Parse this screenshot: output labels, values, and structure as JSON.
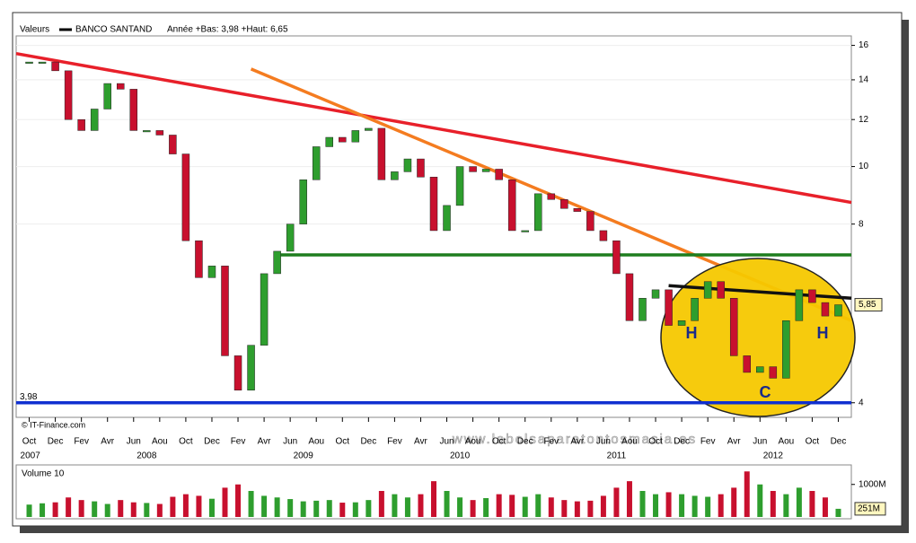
{
  "chart_data": {
    "type": "candlestick",
    "title": "Valeurs",
    "subtitle": "Année +Bas: 3,98 +Haut: 6,65",
    "credit": "© IT-Finance.com",
    "watermark": "www.labolsaparatontosmasia.es",
    "log_scale": true,
    "x": [
      "2007-10",
      "2007-11",
      "2007-12",
      "2008-01",
      "2008-02",
      "2008-03",
      "2008-04",
      "2008-05",
      "2008-06",
      "2008-07",
      "2008-08",
      "2008-09",
      "2008-10",
      "2008-11",
      "2008-12",
      "2009-01",
      "2009-02",
      "2009-03",
      "2009-04",
      "2009-05",
      "2009-06",
      "2009-07",
      "2009-08",
      "2009-09",
      "2009-10",
      "2009-11",
      "2009-12",
      "2010-01",
      "2010-02",
      "2010-03",
      "2010-04",
      "2010-05",
      "2010-06",
      "2010-07",
      "2010-08",
      "2010-09",
      "2010-10",
      "2010-11",
      "2010-12",
      "2011-01",
      "2011-02",
      "2011-03",
      "2011-04",
      "2011-05",
      "2011-06",
      "2011-07",
      "2011-08",
      "2011-09",
      "2011-10",
      "2011-11",
      "2011-12",
      "2012-01",
      "2012-02",
      "2012-03",
      "2012-04",
      "2012-05",
      "2012-06",
      "2012-07",
      "2012-08",
      "2012-09",
      "2012-10",
      "2012-11",
      "2012-12"
    ],
    "series": [
      {
        "name": "BANCO SANTAND",
        "color": "#000000",
        "up_color": "#2e9e2e",
        "down_color": "#c8102e",
        "values": [
          15,
          15,
          14.5,
          12,
          11.5,
          12.5,
          13.8,
          13.5,
          11.5,
          11.5,
          11.3,
          10.5,
          7.5,
          6.5,
          6.8,
          4.8,
          4.2,
          5,
          6.6,
          7.2,
          8,
          9.5,
          10.8,
          11.2,
          11,
          11.5,
          11.6,
          9.5,
          9.8,
          10.3,
          9.6,
          7.8,
          8.6,
          10,
          9.8,
          9.9,
          9.5,
          7.8,
          7.8,
          9,
          8.8,
          8.5,
          8.4,
          7.8,
          7.5,
          6.6,
          5.5,
          6,
          6.2,
          5.4,
          5.5,
          6,
          6.4,
          6,
          4.8,
          4.5,
          4.6,
          4.4,
          5.5,
          6.2,
          5.9,
          5.6,
          5.85
        ]
      }
    ],
    "xlim": [
      "2007-09",
      "2013-01"
    ],
    "ylim": [
      3.78,
      16.6
    ],
    "yticks": [
      4,
      8,
      10,
      12,
      14,
      16
    ],
    "xticks": [
      {
        "value": "2007-10",
        "label": "Oct"
      },
      {
        "value": "2007-12",
        "label": "Dec"
      },
      {
        "value": "2008-02",
        "label": "Fev"
      },
      {
        "value": "2008-04",
        "label": "Avr"
      },
      {
        "value": "2008-06",
        "label": "Jun"
      },
      {
        "value": "2008-08",
        "label": "Aou"
      },
      {
        "value": "2008-10",
        "label": "Oct"
      },
      {
        "value": "2008-12",
        "label": "Dec"
      },
      {
        "value": "2009-02",
        "label": "Fev"
      },
      {
        "value": "2009-04",
        "label": "Avr"
      },
      {
        "value": "2009-06",
        "label": "Jun"
      },
      {
        "value": "2009-08",
        "label": "Aou"
      },
      {
        "value": "2009-10",
        "label": "Oct"
      },
      {
        "value": "2009-12",
        "label": "Dec"
      },
      {
        "value": "2010-02",
        "label": "Fev"
      },
      {
        "value": "2010-04",
        "label": "Avr"
      },
      {
        "value": "2010-06",
        "label": "Jun"
      },
      {
        "value": "2010-08",
        "label": "Aou"
      },
      {
        "value": "2010-10",
        "label": "Oct"
      },
      {
        "value": "2010-12",
        "label": "Dec"
      },
      {
        "value": "2011-02",
        "label": "Fev"
      },
      {
        "value": "2011-04",
        "label": "Avr"
      },
      {
        "value": "2011-06",
        "label": "Jun"
      },
      {
        "value": "2011-08",
        "label": "Aou"
      },
      {
        "value": "2011-10",
        "label": "Oct"
      },
      {
        "value": "2011-12",
        "label": "Dec"
      },
      {
        "value": "2012-02",
        "label": "Fev"
      },
      {
        "value": "2012-04",
        "label": "Avr"
      },
      {
        "value": "2012-06",
        "label": "Jun"
      },
      {
        "value": "2012-08",
        "label": "Aou"
      },
      {
        "value": "2012-10",
        "label": "Oct"
      },
      {
        "value": "2012-12",
        "label": "Dec"
      }
    ],
    "year_ticks": [
      {
        "value": "2007-10",
        "label": "2007"
      },
      {
        "value": "2008-07",
        "label": "2008"
      },
      {
        "value": "2009-07",
        "label": "2009"
      },
      {
        "value": "2010-07",
        "label": "2010"
      },
      {
        "value": "2011-07",
        "label": "2011"
      },
      {
        "value": "2012-07",
        "label": "2012"
      }
    ],
    "low": {
      "value": 3.98,
      "label": "3,98"
    },
    "last": {
      "value": 5.85,
      "label": "5,85"
    },
    "trendlines": [
      {
        "color": "#e8202a",
        "x": [
          "2007-09",
          "2013-01"
        ],
        "y": [
          15.5,
          8.7
        ]
      },
      {
        "color": "#f47c20",
        "x": [
          "2009-03",
          "2013-01"
        ],
        "y": [
          14.6,
          5.5
        ]
      },
      {
        "color": "#1e7d1e",
        "x": [
          "2009-05",
          "2013-01"
        ],
        "y": [
          7.1,
          7.1
        ]
      },
      {
        "color": "#1030d0",
        "x": [
          "2007-09",
          "2013-01"
        ],
        "y": [
          4.0,
          4.0
        ]
      },
      {
        "color": "#111111",
        "x": [
          "2011-11",
          "2013-01"
        ],
        "y": [
          6.3,
          6.0
        ]
      }
    ],
    "annotations": [
      "H",
      "C",
      "H"
    ],
    "volume": {
      "title": "Volume 10",
      "values": [
        380,
        420,
        450,
        600,
        520,
        480,
        400,
        520,
        450,
        430,
        400,
        620,
        700,
        650,
        560,
        900,
        1000,
        800,
        650,
        600,
        550,
        480,
        500,
        520,
        440,
        450,
        520,
        800,
        700,
        600,
        700,
        1100,
        800,
        600,
        520,
        580,
        700,
        680,
        620,
        700,
        600,
        520,
        480,
        500,
        650,
        900,
        1100,
        800,
        700,
        760,
        700,
        650,
        620,
        700,
        900,
        1400,
        1000,
        800,
        700,
        900,
        800,
        600,
        251
      ],
      "ylim": [
        0,
        1600
      ],
      "yticks": [
        {
          "value": 1000,
          "label": "1000M"
        }
      ],
      "last": {
        "value": 251,
        "label": "251M"
      }
    }
  }
}
